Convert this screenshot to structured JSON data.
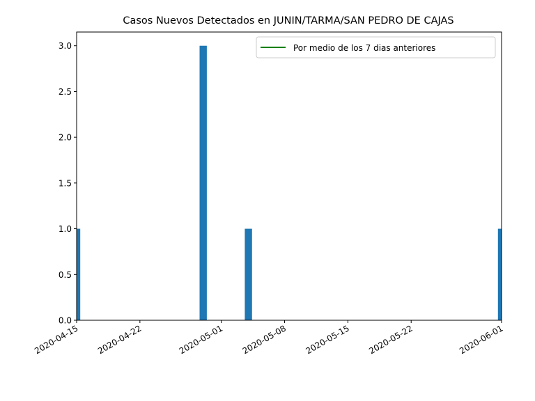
{
  "chart_data": {
    "type": "bar",
    "title": "Casos Nuevos Detectados en JUNIN/TARMA/SAN PEDRO DE CAJAS",
    "xlabel": "",
    "ylabel": "",
    "xlim": [
      "2020-04-15",
      "2020-06-01"
    ],
    "ylim": [
      0,
      3.15
    ],
    "x_ticks": [
      "2020-04-15",
      "2020-04-22",
      "2020-05-01",
      "2020-05-08",
      "2020-05-15",
      "2020-05-22",
      "2020-06-01"
    ],
    "y_ticks": [
      "0.0",
      "0.5",
      "1.0",
      "1.5",
      "2.0",
      "2.5",
      "3.0"
    ],
    "series": [
      {
        "x": [
          "2020-04-15",
          "2020-04-29",
          "2020-05-04",
          "2020-06-01"
        ],
        "values": [
          1,
          3,
          1,
          1
        ],
        "color": "#1f77b4"
      }
    ],
    "line_series": [
      {
        "name": "Por medio de los 7 dias anteriores",
        "color": "#008000"
      }
    ],
    "legend_position": "top-right",
    "grid": false
  }
}
